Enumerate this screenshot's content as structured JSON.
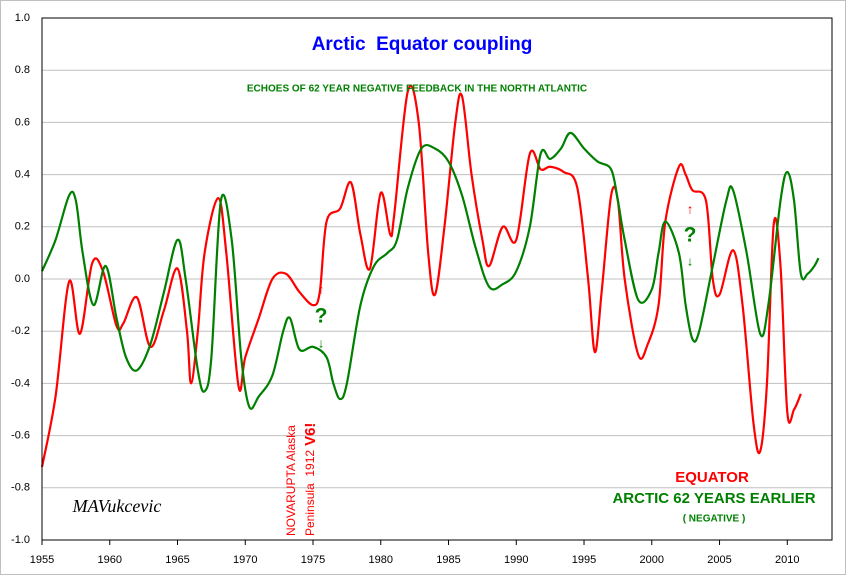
{
  "chart_data": {
    "type": "line",
    "title": "Arctic  Equator coupling",
    "subtitle": "ECHOES OF 62 YEAR NEGATIVE FEEDBACK IN THE NORTH ATLANTIC",
    "annotations": [
      "NOVARUPTA Alaska",
      "Peninsula  1912",
      "V6!",
      "?",
      "?",
      "↑",
      "↓",
      "↑",
      "↓",
      "( NEGATIVE )",
      "MAVukcevic"
    ],
    "xlim": [
      1955,
      2013.3
    ],
    "xticks": [
      1955,
      1960,
      1965,
      1970,
      1975,
      1980,
      1985,
      1990,
      1995,
      2000,
      2005,
      2010
    ],
    "ylim": [
      -1,
      1
    ],
    "yticks": [
      {
        "value": -1,
        "label": "-1.0"
      },
      -0.8,
      -0.6,
      -0.4,
      -0.2,
      {
        "value": 0,
        "label": "0.0"
      },
      0.2,
      0.4,
      0.6,
      0.8,
      {
        "value": 1,
        "label": "1.0"
      }
    ],
    "grid": true,
    "series": [
      {
        "name": "EQUATOR",
        "color": "#ff0000",
        "x": [
          1955,
          1956,
          1957,
          1957.8,
          1958.7,
          1959.5,
          1960.5,
          1961,
          1962,
          1963,
          1964,
          1965,
          1965.7,
          1966,
          1966.5,
          1967,
          1968,
          1968.6,
          1969.5,
          1970,
          1971,
          1972,
          1973,
          1974,
          1975,
          1975.5,
          1976,
          1977,
          1977.8,
          1978.5,
          1979.2,
          1980,
          1980.7,
          1981,
          1982,
          1982.8,
          1983.5,
          1984,
          1984.7,
          1985.5,
          1986,
          1986.7,
          1987.5,
          1988,
          1989,
          1990,
          1991,
          1991.8,
          1992.5,
          1993.5,
          1994.5,
          1995.3,
          1995.8,
          1996.3,
          1997,
          1997.5,
          1998,
          1999,
          1999.7,
          2000.5,
          2001,
          2002,
          2002.5,
          2003,
          2004,
          2004.5,
          2005,
          2006,
          2006.7,
          2007.5,
          2008,
          2008.5,
          2009,
          2009.5,
          2010,
          2010.5,
          2011
        ],
        "values": [
          -0.72,
          -0.45,
          -0.01,
          -0.21,
          0.06,
          0.03,
          -0.18,
          -0.17,
          -0.07,
          -0.26,
          -0.12,
          0.04,
          -0.2,
          -0.4,
          -0.2,
          0.1,
          0.31,
          0.1,
          -0.41,
          -0.3,
          -0.15,
          0.0,
          0.02,
          -0.05,
          -0.1,
          -0.05,
          0.22,
          0.27,
          0.37,
          0.17,
          0.04,
          0.33,
          0.17,
          0.25,
          0.72,
          0.6,
          0.1,
          -0.06,
          0.2,
          0.6,
          0.7,
          0.4,
          0.15,
          0.05,
          0.2,
          0.15,
          0.48,
          0.42,
          0.43,
          0.41,
          0.35,
          0.0,
          -0.28,
          -0.05,
          0.32,
          0.3,
          0.0,
          -0.29,
          -0.25,
          -0.1,
          0.22,
          0.43,
          0.4,
          0.34,
          0.3,
          0.0,
          -0.06,
          0.11,
          -0.1,
          -0.55,
          -0.66,
          -0.4,
          0.21,
          0.05,
          -0.51,
          -0.5,
          -0.44
        ]
      },
      {
        "name": "ARCTIC 62 YEARS EARLIER",
        "color": "#008000",
        "x": [
          1955,
          1956,
          1957,
          1957.5,
          1958,
          1958.8,
          1959.7,
          1960.5,
          1961.2,
          1962,
          1963,
          1964,
          1965,
          1965.6,
          1966.5,
          1967,
          1967.5,
          1968.2,
          1969,
          1969.7,
          1970.3,
          1971,
          1972,
          1972.8,
          1973.3,
          1974,
          1975,
          1976,
          1976.5,
          1977,
          1977.5,
          1978.5,
          1979.5,
          1980.5,
          1981.2,
          1982,
          1983,
          1984,
          1985,
          1986,
          1987,
          1988,
          1989,
          1990,
          1991,
          1991.8,
          1992.5,
          1993.3,
          1994,
          1995,
          1996,
          1997,
          1997.5,
          1998,
          1999,
          2000,
          2000.5,
          2001,
          2002,
          2002.5,
          2003,
          2003.5,
          2004.5,
          2005.5,
          2006,
          2007,
          2008,
          2008.6,
          2009.5,
          2010,
          2010.5,
          2011,
          2011.5,
          2012,
          2012.3
        ],
        "values": [
          0.03,
          0.15,
          0.32,
          0.3,
          0.1,
          -0.1,
          0.05,
          -0.15,
          -0.3,
          -0.35,
          -0.25,
          -0.05,
          0.15,
          0.0,
          -0.35,
          -0.43,
          -0.3,
          0.3,
          0.15,
          -0.3,
          -0.49,
          -0.45,
          -0.37,
          -0.2,
          -0.15,
          -0.27,
          -0.26,
          -0.3,
          -0.4,
          -0.46,
          -0.4,
          -0.1,
          0.05,
          0.1,
          0.15,
          0.35,
          0.5,
          0.5,
          0.45,
          0.32,
          0.12,
          -0.03,
          -0.02,
          0.03,
          0.2,
          0.48,
          0.46,
          0.5,
          0.56,
          0.5,
          0.45,
          0.42,
          0.3,
          0.15,
          -0.08,
          -0.04,
          0.1,
          0.22,
          0.1,
          -0.1,
          -0.23,
          -0.2,
          0.05,
          0.3,
          0.34,
          0.1,
          -0.21,
          -0.1,
          0.3,
          0.41,
          0.3,
          0.02,
          0.02,
          0.05,
          0.08
        ]
      }
    ]
  }
}
